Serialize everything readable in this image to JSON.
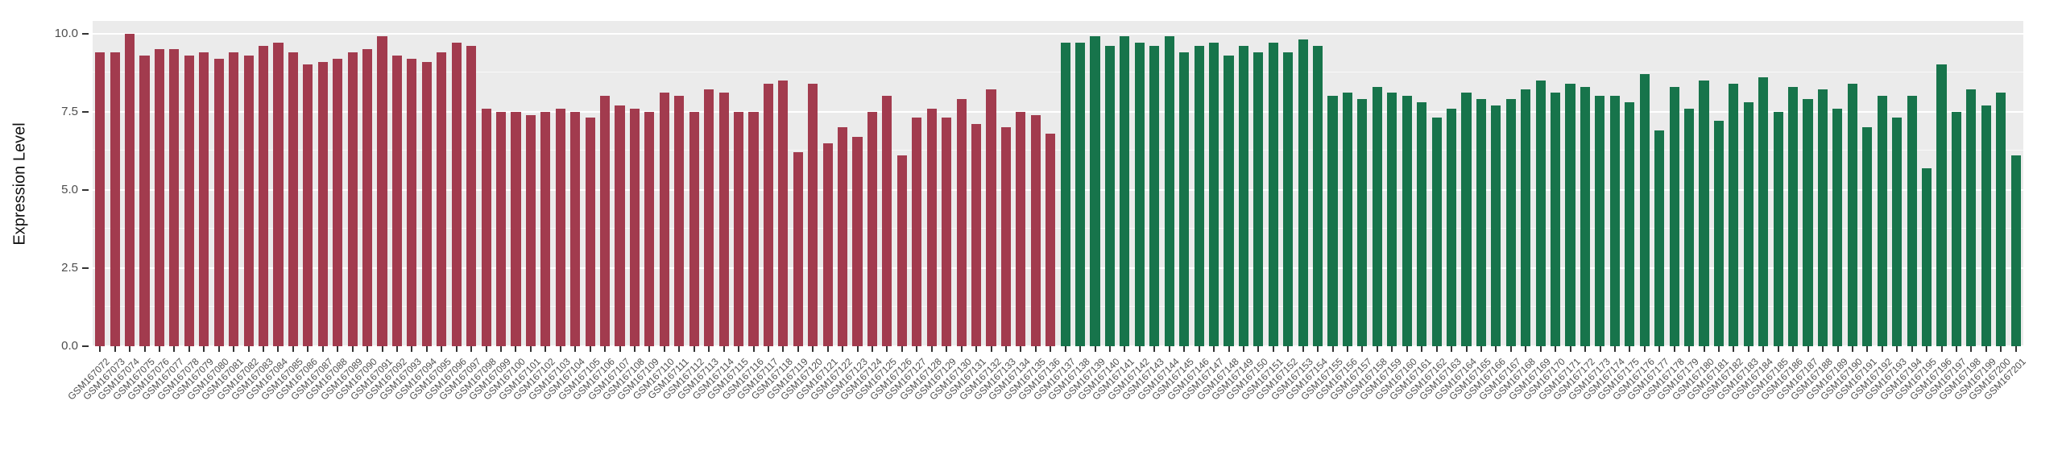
{
  "chart_data": {
    "type": "bar",
    "title": "",
    "xlabel": "",
    "ylabel": "Expression Level",
    "ylim": [
      0,
      10.4
    ],
    "yticks": [
      0,
      2.5,
      5,
      7.5,
      10
    ],
    "ytick_labels": [
      "0.0",
      "2.5",
      "5.0",
      "7.5",
      "10.0"
    ],
    "grid": true,
    "legend": false,
    "panel_background": "#EBEBEB",
    "gridline_color": "#FFFFFF",
    "bar_groups": [
      {
        "name": "group-1-red",
        "color": "#A23B4E",
        "start": 0,
        "end": 64
      },
      {
        "name": "group-2-green",
        "color": "#17744B",
        "start": 65,
        "end": 129
      }
    ],
    "categories": [
      "GSM167072",
      "GSM167073",
      "GSM167074",
      "GSM167075",
      "GSM167076",
      "GSM167077",
      "GSM167078",
      "GSM167079",
      "GSM167080",
      "GSM167081",
      "GSM167082",
      "GSM167083",
      "GSM167084",
      "GSM167085",
      "GSM167086",
      "GSM167087",
      "GSM167088",
      "GSM167089",
      "GSM167090",
      "GSM167091",
      "GSM167092",
      "GSM167093",
      "GSM167094",
      "GSM167095",
      "GSM167096",
      "GSM167097",
      "GSM167098",
      "GSM167099",
      "GSM167100",
      "GSM167101",
      "GSM167102",
      "GSM167103",
      "GSM167104",
      "GSM167105",
      "GSM167106",
      "GSM167107",
      "GSM167108",
      "GSM167109",
      "GSM167110",
      "GSM167111",
      "GSM167112",
      "GSM167113",
      "GSM167114",
      "GSM167115",
      "GSM167116",
      "GSM167117",
      "GSM167118",
      "GSM167119",
      "GSM167120",
      "GSM167121",
      "GSM167122",
      "GSM167123",
      "GSM167124",
      "GSM167125",
      "GSM167126",
      "GSM167127",
      "GSM167128",
      "GSM167129",
      "GSM167130",
      "GSM167131",
      "GSM167132",
      "GSM167133",
      "GSM167134",
      "GSM167135",
      "GSM167136",
      "GSM167137",
      "GSM167138",
      "GSM167139",
      "GSM167140",
      "GSM167141",
      "GSM167142",
      "GSM167143",
      "GSM167144",
      "GSM167145",
      "GSM167146",
      "GSM167147",
      "GSM167148",
      "GSM167149",
      "GSM167150",
      "GSM167151",
      "GSM167152",
      "GSM167153",
      "GSM167154",
      "GSM167155",
      "GSM167156",
      "GSM167157",
      "GSM167158",
      "GSM167159",
      "GSM167160",
      "GSM167161",
      "GSM167162",
      "GSM167163",
      "GSM167164",
      "GSM167165",
      "GSM167166",
      "GSM167167",
      "GSM167168",
      "GSM167169",
      "GSM167170",
      "GSM167171",
      "GSM167172",
      "GSM167173",
      "GSM167174",
      "GSM167175",
      "GSM167176",
      "GSM167177",
      "GSM167178",
      "GSM167179",
      "GSM167180",
      "GSM167181",
      "GSM167182",
      "GSM167183",
      "GSM167184",
      "GSM167185",
      "GSM167186",
      "GSM167187",
      "GSM167188",
      "GSM167189",
      "GSM167190",
      "GSM167191",
      "GSM167192",
      "GSM167193",
      "GSM167194",
      "GSM167195",
      "GSM167196",
      "GSM167197",
      "GSM167198",
      "GSM167199",
      "GSM167200",
      "GSM167201"
    ],
    "values": [
      9.4,
      9.4,
      10.0,
      9.3,
      9.5,
      9.5,
      9.3,
      9.4,
      9.2,
      9.4,
      9.3,
      9.6,
      9.7,
      9.4,
      9.0,
      9.1,
      9.2,
      9.4,
      9.5,
      9.9,
      9.3,
      9.2,
      9.1,
      9.4,
      9.7,
      9.6,
      7.6,
      7.5,
      7.5,
      7.4,
      7.5,
      7.6,
      7.5,
      7.3,
      8.0,
      7.7,
      7.6,
      7.5,
      8.1,
      8.0,
      7.5,
      8.2,
      8.1,
      7.5,
      7.5,
      8.4,
      8.5,
      6.2,
      8.4,
      6.5,
      7.0,
      6.7,
      7.5,
      8.0,
      6.1,
      7.3,
      7.6,
      7.3,
      7.9,
      7.1,
      8.2,
      7.0,
      7.5,
      7.4,
      6.8,
      9.7,
      9.7,
      9.9,
      9.6,
      9.9,
      9.7,
      9.6,
      9.9,
      9.4,
      9.6,
      9.7,
      9.3,
      9.6,
      9.4,
      9.7,
      9.4,
      9.8,
      9.6,
      8.0,
      8.1,
      7.9,
      8.3,
      8.1,
      8.0,
      7.8,
      7.3,
      7.6,
      8.1,
      7.9,
      7.7,
      7.9,
      8.2,
      8.5,
      8.1,
      8.4,
      8.3,
      8.0,
      8.0,
      7.8,
      8.7,
      6.9,
      8.3,
      7.6,
      8.5,
      7.2,
      8.4,
      7.8,
      8.6,
      7.5,
      8.3,
      7.9,
      8.2,
      7.6,
      8.4,
      7.0,
      8.0,
      7.3,
      8.0,
      5.7,
      9.0,
      7.5,
      8.2,
      7.7,
      8.1,
      6.1
    ]
  }
}
